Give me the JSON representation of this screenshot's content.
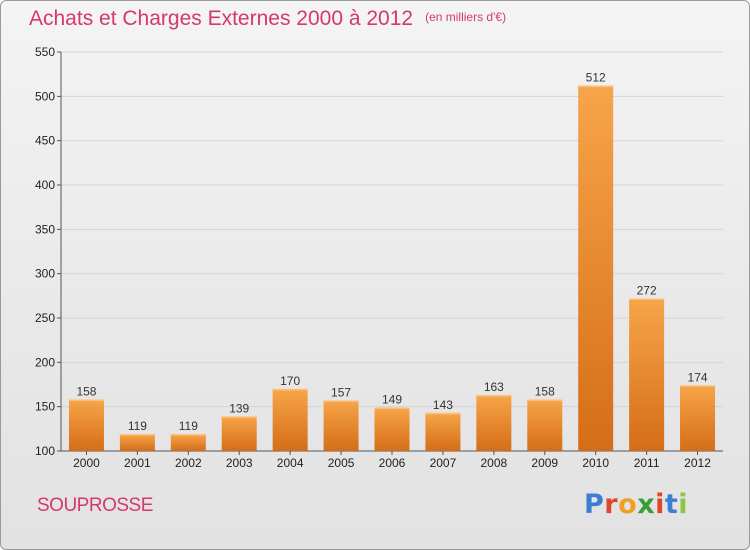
{
  "header": {
    "title": "Achats et Charges Externes 2000 à 2012",
    "unit": "(en milliers d'€)"
  },
  "footer": {
    "town": "SOUPROSSE",
    "logo_letters": [
      {
        "ch": "P",
        "color": "#3a7fd4"
      },
      {
        "ch": "r",
        "color": "#e0462b"
      },
      {
        "ch": "o",
        "color": "#f0a020"
      },
      {
        "ch": "x",
        "color": "#3a9c3a"
      },
      {
        "ch": "i",
        "color": "#e0462b"
      },
      {
        "ch": "t",
        "color": "#3a7fd4"
      },
      {
        "ch": "i",
        "color": "#8cc63f"
      }
    ]
  },
  "colors": {
    "title": "#d5396b",
    "bar_top": "#f7a54a",
    "bar_bottom": "#d56d18",
    "grid": "#d4d4d4",
    "axis": "#555555"
  },
  "chart_data": {
    "type": "bar",
    "title": "Achats et Charges Externes 2000 à 2012",
    "subtitle": "(en milliers d'€)",
    "xlabel": "",
    "ylabel": "",
    "categories": [
      "2000",
      "2001",
      "2002",
      "2003",
      "2004",
      "2005",
      "2006",
      "2007",
      "2008",
      "2009",
      "2010",
      "2011",
      "2012"
    ],
    "values": [
      158,
      119,
      119,
      139,
      170,
      157,
      149,
      143,
      163,
      158,
      512,
      272,
      174
    ],
    "ylim": [
      100,
      550
    ],
    "yticks": [
      100,
      150,
      200,
      250,
      300,
      350,
      400,
      450,
      500,
      550
    ],
    "grid": true,
    "legend": "none"
  }
}
